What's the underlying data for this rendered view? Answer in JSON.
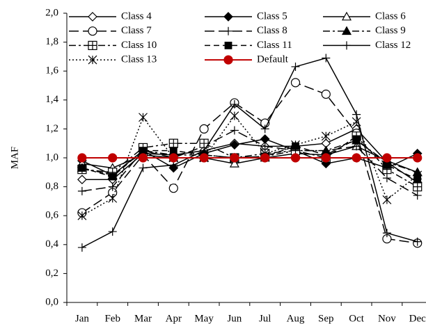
{
  "chart_data": {
    "type": "line",
    "y_label": "MAF",
    "categories": [
      "Jan",
      "Feb",
      "Mar",
      "Apr",
      "May",
      "Jun",
      "Jul",
      "Aug",
      "Sep",
      "Oct",
      "Nov",
      "Dec"
    ],
    "ylim": [
      0,
      2
    ],
    "yticks": [
      {
        "value": 0,
        "label": "0,0"
      },
      {
        "value": 0.2,
        "label": "0,2"
      },
      {
        "value": 0.4,
        "label": "0,4"
      },
      {
        "value": 0.6,
        "label": "0,6"
      },
      {
        "value": 0.8,
        "label": "0,8"
      },
      {
        "value": 1,
        "label": "1,0"
      },
      {
        "value": 1.2,
        "label": "1,2"
      },
      {
        "value": 1.4,
        "label": "1,4"
      },
      {
        "value": 1.6,
        "label": "1,6"
      },
      {
        "value": 1.8,
        "label": "1,8"
      },
      {
        "value": 2,
        "label": "2,0"
      }
    ],
    "legend": "top",
    "series": [
      {
        "name": "Class 4",
        "color": "#000",
        "dash": "solid",
        "marker": "diamond",
        "values": [
          0.85,
          0.85,
          1.03,
          1.02,
          1.05,
          1.1,
          1.08,
          1.08,
          1.1,
          1.2,
          0.97,
          0.83
        ]
      },
      {
        "name": "Class 5",
        "color": "#000",
        "dash": "solid",
        "marker": "diamond-filled",
        "values": [
          0.98,
          0.88,
          1.05,
          0.93,
          1.03,
          1.09,
          1.13,
          1.05,
          0.96,
          1.0,
          0.93,
          1.03
        ]
      },
      {
        "name": "Class 6",
        "color": "#000",
        "dash": "solid",
        "marker": "triangle",
        "values": [
          0.96,
          0.93,
          1.02,
          1.0,
          1.0,
          0.96,
          1.0,
          1.03,
          1.02,
          1.08,
          0.98,
          0.9
        ]
      },
      {
        "name": "Class 7",
        "color": "#000",
        "dash": "longdash",
        "marker": "circle",
        "values": [
          0.62,
          0.76,
          1.02,
          0.79,
          1.2,
          1.38,
          1.24,
          1.52,
          1.44,
          1.17,
          0.44,
          0.41
        ]
      },
      {
        "name": "Class 8",
        "color": "#000",
        "dash": "longdash",
        "marker": "plus",
        "values": [
          0.77,
          0.8,
          1.05,
          1.0,
          1.08,
          1.19,
          1.08,
          1.05,
          1.05,
          1.08,
          0.86,
          0.74
        ]
      },
      {
        "name": "Class 9",
        "color": "#000",
        "dash": "dashdot",
        "marker": "triangle-filled",
        "values": [
          0.93,
          0.88,
          1.05,
          1.02,
          1.02,
          1.0,
          1.01,
          1.05,
          1.05,
          1.12,
          0.97,
          0.9
        ]
      },
      {
        "name": "Class 10",
        "color": "#000",
        "dash": "dashdot",
        "marker": "square-x",
        "values": [
          0.92,
          0.9,
          1.07,
          1.1,
          1.1,
          1.0,
          1.03,
          1.05,
          1.0,
          1.15,
          0.92,
          0.8
        ]
      },
      {
        "name": "Class 11",
        "color": "#000",
        "dash": "dash",
        "marker": "square-filled",
        "values": [
          0.93,
          0.87,
          1.05,
          1.05,
          1.02,
          1.0,
          1.01,
          1.08,
          1.02,
          1.13,
          0.95,
          0.85
        ]
      },
      {
        "name": "Class 12",
        "color": "#000",
        "dash": "solid",
        "marker": "plus",
        "values": [
          0.38,
          0.49,
          0.93,
          0.95,
          1.05,
          1.37,
          1.2,
          1.63,
          1.69,
          1.3,
          0.48,
          0.42
        ]
      },
      {
        "name": "Class 13",
        "color": "#000",
        "dash": "dot",
        "marker": "asterisk",
        "values": [
          0.6,
          0.72,
          1.28,
          1.0,
          1.0,
          1.29,
          1.03,
          1.09,
          1.15,
          1.25,
          0.71,
          0.88
        ]
      },
      {
        "name": "Default",
        "color": "#c00000",
        "dash": "solid",
        "marker": "circle-filled",
        "values": [
          1,
          1,
          1,
          1,
          1,
          1,
          1,
          1,
          1,
          1,
          1,
          1
        ]
      }
    ]
  }
}
